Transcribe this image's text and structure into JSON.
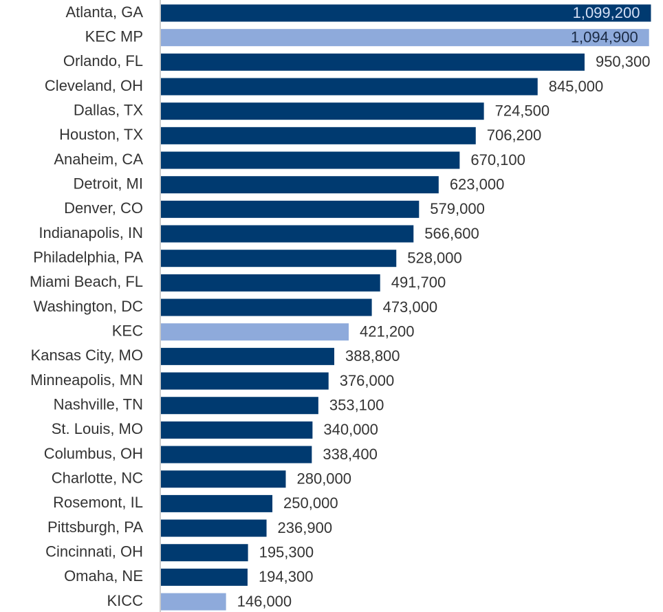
{
  "chart_data": {
    "type": "bar",
    "orientation": "horizontal",
    "categories": [
      "Atlanta, GA",
      "KEC MP",
      "Orlando, FL",
      "Cleveland, OH",
      "Dallas, TX",
      "Houston, TX",
      "Anaheim, CA",
      "Detroit, MI",
      "Denver, CO",
      "Indianapolis, IN",
      "Philadelphia, PA",
      "Miami Beach, FL",
      "Washington, DC",
      "KEC",
      "Kansas City, MO",
      "Minneapolis, MN",
      "Nashville, TN",
      "St. Louis, MO",
      "Columbus, OH",
      "Charlotte, NC",
      "Rosemont, IL",
      "Pittsburgh, PA",
      "Cincinnati, OH",
      "Omaha, NE",
      "KICC"
    ],
    "values": [
      1099200,
      1094900,
      950300,
      845000,
      724500,
      706200,
      670100,
      623000,
      579000,
      566600,
      528000,
      491700,
      473000,
      421200,
      388800,
      376000,
      353100,
      340000,
      338400,
      280000,
      250000,
      236900,
      195300,
      194300,
      146000
    ],
    "value_labels": [
      "1,099,200",
      "1,094,900",
      "950,300",
      "845,000",
      "724,500",
      "706,200",
      "670,100",
      "623,000",
      "579,000",
      "566,600",
      "528,000",
      "491,700",
      "473,000",
      "421,200",
      "388,800",
      "376,000",
      "353,100",
      "340,000",
      "338,400",
      "280,000",
      "250,000",
      "236,900",
      "195,300",
      "194,300",
      "146,000"
    ],
    "colors": [
      "#003a70",
      "#8eaadb",
      "#003a70",
      "#003a70",
      "#003a70",
      "#003a70",
      "#003a70",
      "#003a70",
      "#003a70",
      "#003a70",
      "#003a70",
      "#003a70",
      "#003a70",
      "#8eaadb",
      "#003a70",
      "#003a70",
      "#003a70",
      "#003a70",
      "#003a70",
      "#003a70",
      "#003a70",
      "#003a70",
      "#003a70",
      "#003a70",
      "#8eaadb"
    ],
    "xlim": [
      0,
      1100000
    ]
  }
}
